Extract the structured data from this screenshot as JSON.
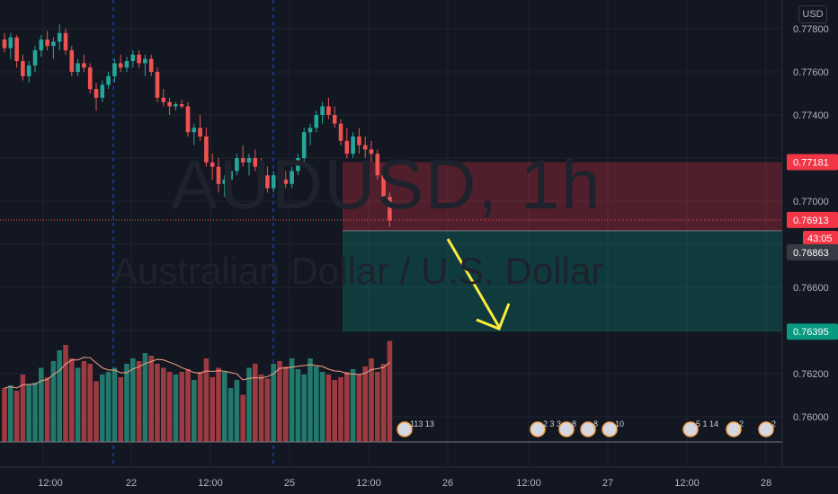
{
  "chart_data": {
    "type": "candlestick",
    "symbol": "AUDUSD, 1h",
    "description": "Australian Dollar / U.S. Dollar",
    "currency": "USD",
    "y_ticks": [
      "0.77800",
      "0.77600",
      "0.77400",
      "0.77000",
      "0.76600",
      "0.76200",
      "0.76000"
    ],
    "ylim": [
      0.7588,
      0.779
    ],
    "x_ticks": [
      "12:00",
      "22",
      "12:00",
      "25",
      "12:00",
      "26",
      "12:00",
      "27",
      "12:00",
      "28"
    ],
    "price_labels": {
      "stop_loss": "0.77181",
      "last_price": "0.76913",
      "countdown": "43:05",
      "entry": "0.76863",
      "take_profit": "0.76395"
    },
    "short_position": {
      "entry": 0.76863,
      "stop": 0.77181,
      "target": 0.76395
    },
    "candles": [
      [
        0.7775,
        0.7778,
        0.7769,
        0.7771
      ],
      [
        0.7771,
        0.7778,
        0.7766,
        0.7776
      ],
      [
        0.7776,
        0.7777,
        0.7762,
        0.7765
      ],
      [
        0.7765,
        0.7768,
        0.7756,
        0.7758
      ],
      [
        0.7758,
        0.7765,
        0.7755,
        0.7763
      ],
      [
        0.7763,
        0.7772,
        0.776,
        0.777
      ],
      [
        0.777,
        0.7777,
        0.7767,
        0.7775
      ],
      [
        0.7775,
        0.7779,
        0.777,
        0.7772
      ],
      [
        0.7772,
        0.7776,
        0.7766,
        0.7774
      ],
      [
        0.7774,
        0.7782,
        0.777,
        0.7778
      ],
      [
        0.7778,
        0.778,
        0.7768,
        0.777
      ],
      [
        0.777,
        0.7772,
        0.7758,
        0.776
      ],
      [
        0.776,
        0.7766,
        0.7758,
        0.7764
      ],
      [
        0.7764,
        0.7768,
        0.776,
        0.7762
      ],
      [
        0.7762,
        0.7764,
        0.775,
        0.7752
      ],
      [
        0.7752,
        0.7755,
        0.7742,
        0.7748
      ],
      [
        0.7748,
        0.7756,
        0.7746,
        0.7754
      ],
      [
        0.7754,
        0.776,
        0.7752,
        0.7758
      ],
      [
        0.7758,
        0.7766,
        0.7755,
        0.7764
      ],
      [
        0.7764,
        0.7768,
        0.776,
        0.7762
      ],
      [
        0.7762,
        0.7767,
        0.776,
        0.7765
      ],
      [
        0.7765,
        0.777,
        0.7762,
        0.7768
      ],
      [
        0.7768,
        0.777,
        0.7762,
        0.7764
      ],
      [
        0.7764,
        0.7768,
        0.7758,
        0.7766
      ],
      [
        0.7766,
        0.7768,
        0.7758,
        0.776
      ],
      [
        0.776,
        0.7762,
        0.7746,
        0.7748
      ],
      [
        0.7748,
        0.7752,
        0.7744,
        0.7746
      ],
      [
        0.7746,
        0.7748,
        0.774,
        0.7744
      ],
      [
        0.7744,
        0.7746,
        0.7742,
        0.7745
      ],
      [
        0.7745,
        0.7747,
        0.7743,
        0.7744
      ],
      [
        0.7744,
        0.7746,
        0.773,
        0.7732
      ],
      [
        0.7732,
        0.7736,
        0.7726,
        0.7734
      ],
      [
        0.7734,
        0.774,
        0.7728,
        0.773
      ],
      [
        0.773,
        0.7734,
        0.7716,
        0.7718
      ],
      [
        0.7718,
        0.7722,
        0.771,
        0.7716
      ],
      [
        0.7716,
        0.772,
        0.7704,
        0.7708
      ],
      [
        0.7708,
        0.7712,
        0.7702,
        0.771
      ],
      [
        0.771,
        0.7716,
        0.7706,
        0.7714
      ],
      [
        0.7714,
        0.7722,
        0.7712,
        0.772
      ],
      [
        0.772,
        0.7726,
        0.7716,
        0.7718
      ],
      [
        0.7718,
        0.7722,
        0.7712,
        0.772
      ],
      [
        0.772,
        0.7724,
        0.7714,
        0.7716
      ],
      [
        0.7716,
        0.772,
        0.771,
        0.7712
      ],
      [
        0.7712,
        0.7716,
        0.7704,
        0.7706
      ],
      [
        0.7706,
        0.7714,
        0.7704,
        0.7712
      ],
      [
        0.7712,
        0.7718,
        0.7708,
        0.771
      ],
      [
        0.771,
        0.7714,
        0.7706,
        0.7708
      ],
      [
        0.7708,
        0.7716,
        0.7706,
        0.7714
      ],
      [
        0.7714,
        0.7722,
        0.7712,
        0.772
      ],
      [
        0.772,
        0.7734,
        0.7718,
        0.7732
      ],
      [
        0.7732,
        0.7736,
        0.7726,
        0.7734
      ],
      [
        0.7734,
        0.7742,
        0.7732,
        0.774
      ],
      [
        0.774,
        0.7746,
        0.7736,
        0.7744
      ],
      [
        0.7744,
        0.7748,
        0.7738,
        0.774
      ],
      [
        0.774,
        0.7744,
        0.7734,
        0.7736
      ],
      [
        0.7736,
        0.7738,
        0.7726,
        0.7728
      ],
      [
        0.7728,
        0.7734,
        0.772,
        0.7722
      ],
      [
        0.7722,
        0.7732,
        0.772,
        0.773
      ],
      [
        0.773,
        0.7734,
        0.7722,
        0.7726
      ],
      [
        0.7726,
        0.773,
        0.772,
        0.7724
      ],
      [
        0.7724,
        0.7728,
        0.7718,
        0.7722
      ],
      [
        0.7722,
        0.7724,
        0.771,
        0.7712
      ],
      [
        0.7712,
        0.7714,
        0.77,
        0.7702
      ],
      [
        0.7702,
        0.7704,
        0.7688,
        0.7691
      ]
    ],
    "volume": [
      40,
      42,
      38,
      50,
      43,
      44,
      55,
      48,
      60,
      68,
      72,
      62,
      55,
      60,
      58,
      45,
      50,
      52,
      55,
      48,
      58,
      62,
      60,
      66,
      64,
      58,
      55,
      52,
      50,
      52,
      54,
      46,
      52,
      62,
      48,
      55,
      52,
      40,
      46,
      35,
      55,
      58,
      50,
      47,
      58,
      60,
      56,
      62,
      54,
      50,
      62,
      56,
      52,
      50,
      46,
      48,
      52,
      54,
      50,
      56,
      62,
      52,
      58,
      75
    ]
  },
  "event_icons": [
    {
      "label": "113 13"
    },
    {
      "label": "2 3 3"
    },
    {
      "label": "8"
    },
    {
      "label": "8"
    },
    {
      "label": "10"
    },
    {
      "label": "5 1 14"
    },
    {
      "label": "2"
    },
    {
      "label": "2"
    }
  ]
}
